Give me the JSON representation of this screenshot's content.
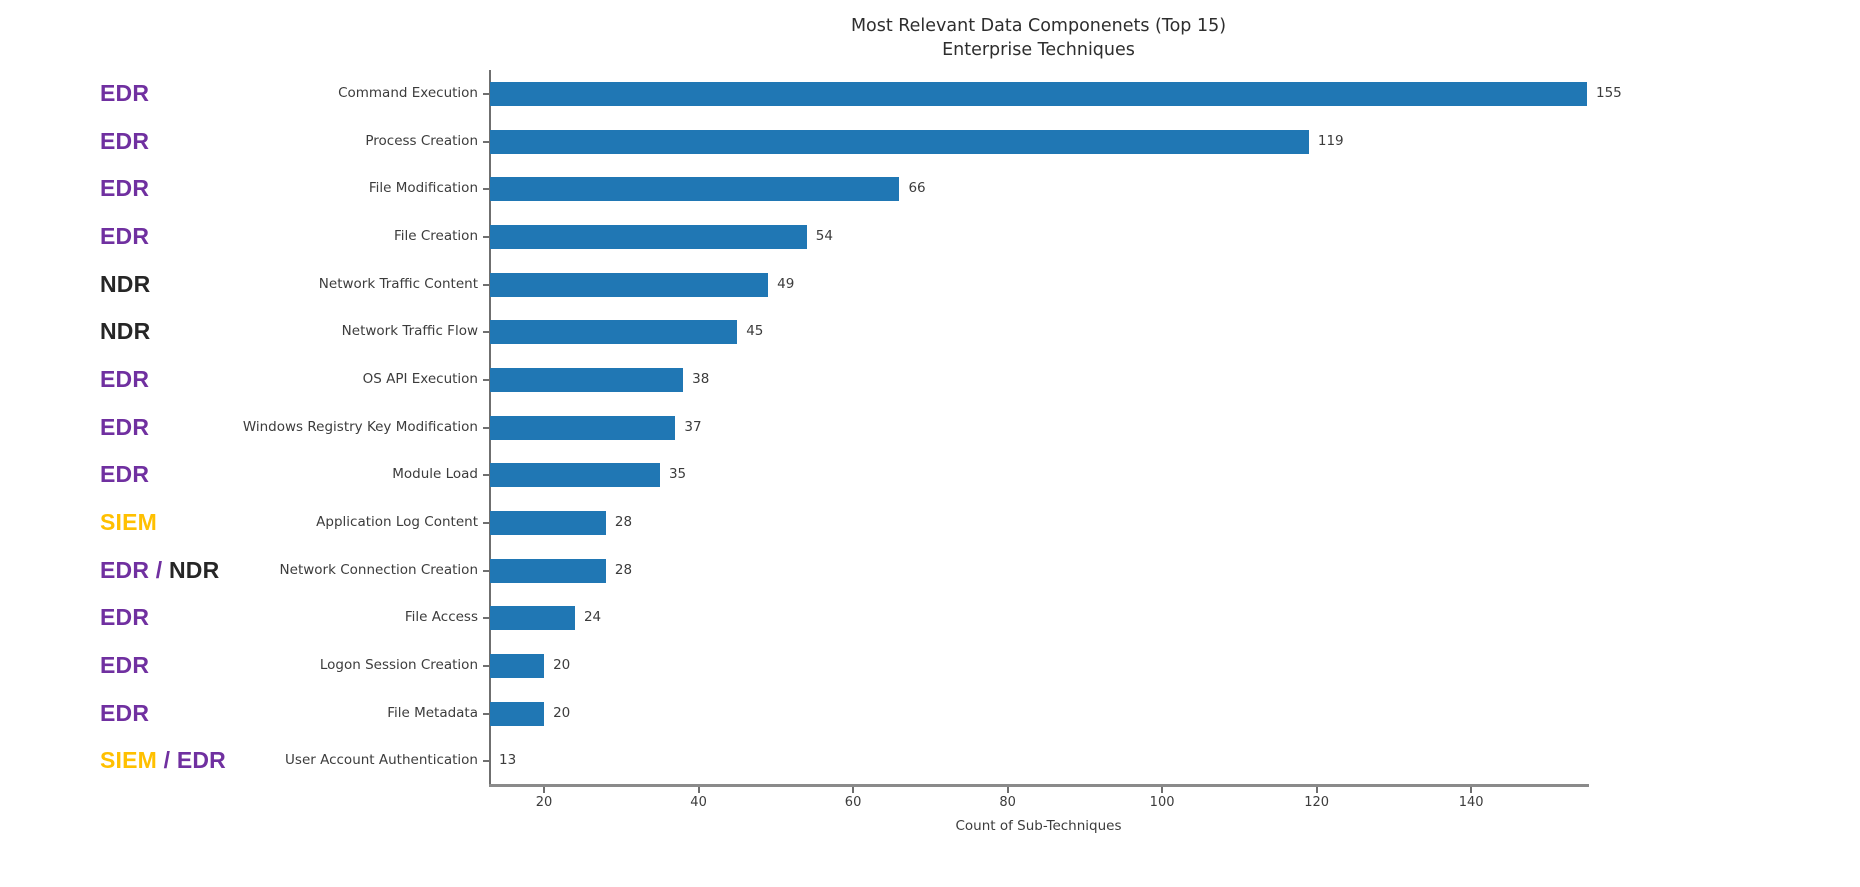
{
  "labels": {
    "title_line1": "Most Relevant Data Componenets (Top 15)",
    "title_line2": "Enterprise Techniques",
    "xlabel": "Count of Sub-Techniques",
    "tag_separator": " / "
  },
  "colors": {
    "bar": "#2077b4",
    "EDR": "#7030a0",
    "NDR": "#262626",
    "SIEM": "#ffc000",
    "separator": "#7030a0",
    "text": "#3c3c3c"
  },
  "chart_data": {
    "type": "bar",
    "orientation": "horizontal",
    "title": "Most Relevant Data Componenets (Top 15)\nEnterprise Techniques",
    "xlabel": "Count of Sub-Techniques",
    "ylabel": "",
    "legend": "none",
    "grid": false,
    "xlim": [
      13,
      155
    ],
    "xticks": [
      20,
      40,
      60,
      80,
      100,
      120,
      140
    ],
    "categories": [
      "Command Execution",
      "Process Creation",
      "File Modification",
      "File Creation",
      "Network Traffic Content",
      "Network Traffic Flow",
      "OS API Execution",
      "Windows Registry Key Modification",
      "Module Load",
      "Application Log Content",
      "Network Connection Creation",
      "File Access",
      "Logon Session Creation",
      "File Metadata",
      "User Account Authentication"
    ],
    "values": [
      155,
      119,
      66,
      54,
      49,
      45,
      38,
      37,
      35,
      28,
      28,
      24,
      20,
      20,
      13
    ],
    "bar_value_labels": [
      "155",
      "119",
      "66",
      "54",
      "49",
      "45",
      "38",
      "37",
      "35",
      "28",
      "28",
      "24",
      "20",
      "20",
      "13"
    ],
    "row_tags": [
      [
        "EDR"
      ],
      [
        "EDR"
      ],
      [
        "EDR"
      ],
      [
        "EDR"
      ],
      [
        "NDR"
      ],
      [
        "NDR"
      ],
      [
        "EDR"
      ],
      [
        "EDR"
      ],
      [
        "EDR"
      ],
      [
        "SIEM"
      ],
      [
        "EDR",
        "NDR"
      ],
      [
        "EDR"
      ],
      [
        "EDR"
      ],
      [
        "EDR"
      ],
      [
        "SIEM",
        "EDR"
      ]
    ]
  }
}
